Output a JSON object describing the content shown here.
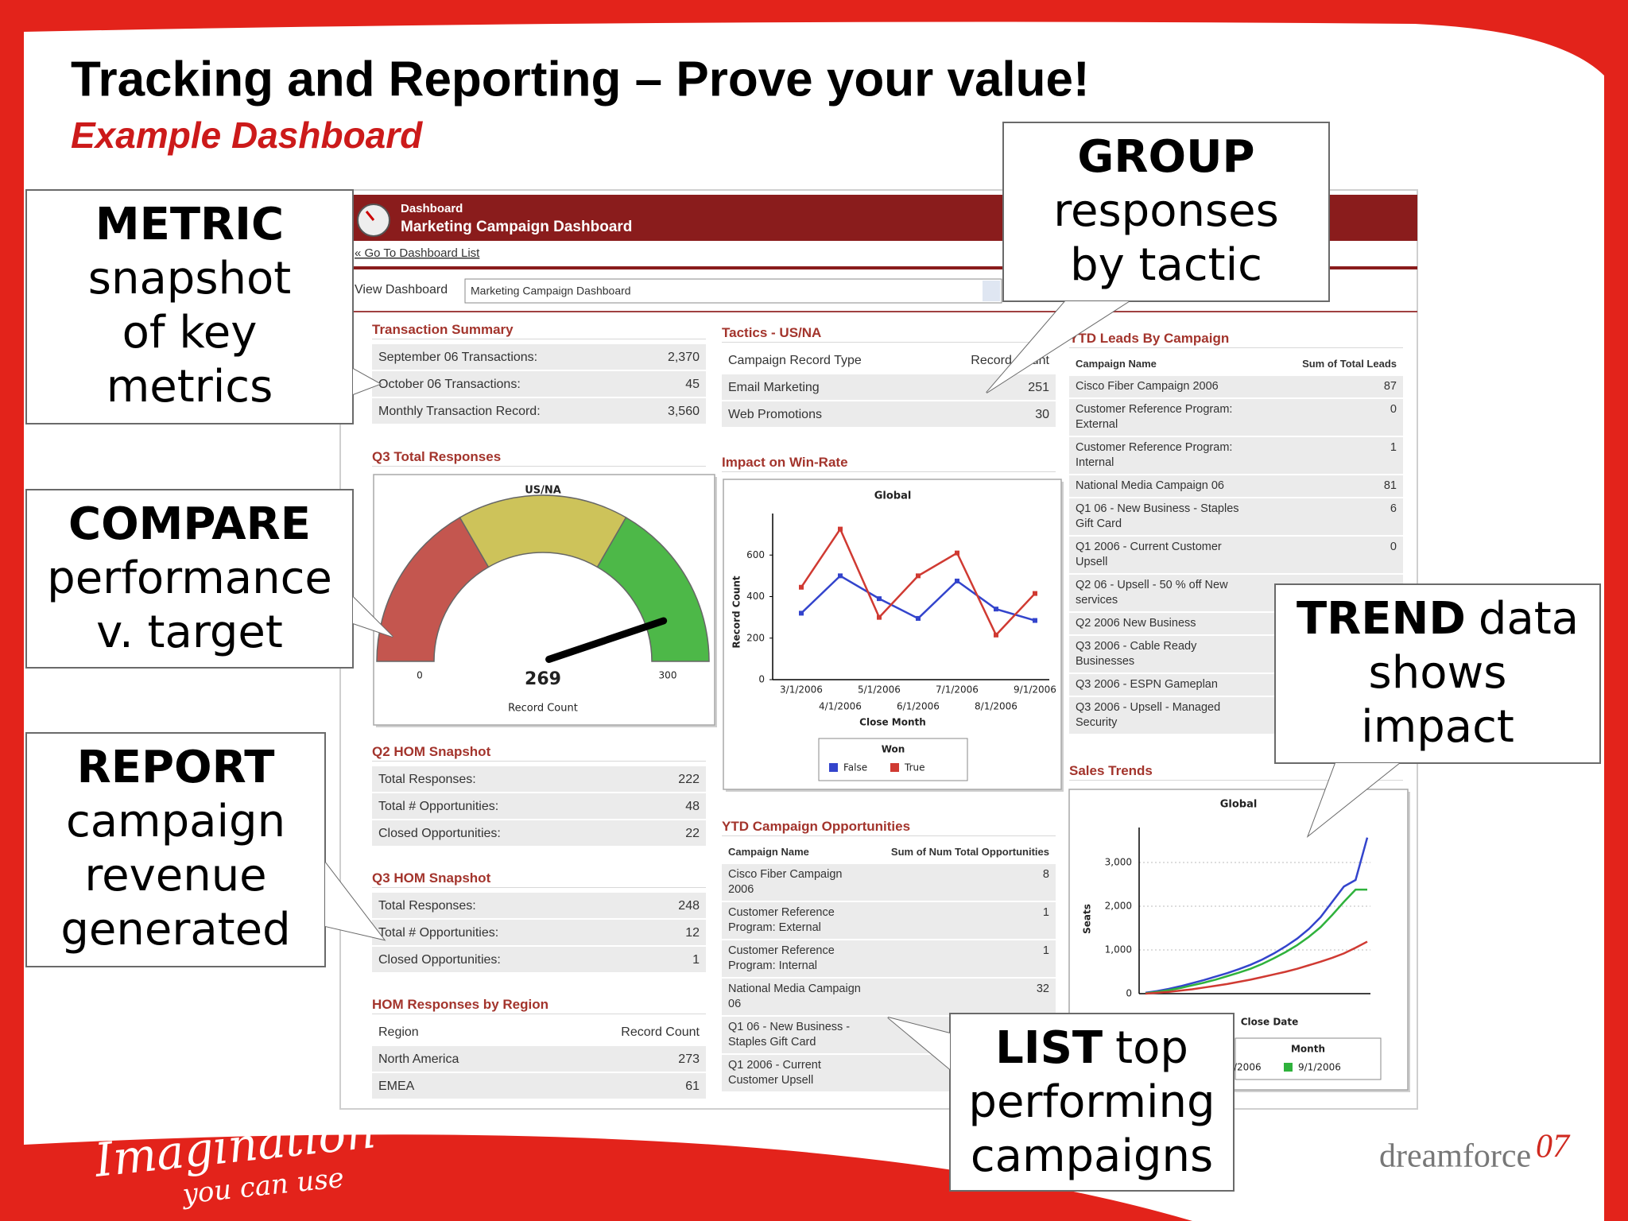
{
  "slide": {
    "title": "Tracking and Reporting – Prove your value!",
    "subtitle": "Example Dashboard"
  },
  "callouts": [
    {
      "heading": "METRIC",
      "lines": [
        "snapshot",
        "of key",
        "metrics"
      ]
    },
    {
      "heading": "COMPARE",
      "lines": [
        "performance",
        "v. target"
      ]
    },
    {
      "heading": "REPORT",
      "lines": [
        "campaign",
        "revenue",
        "generated"
      ]
    },
    {
      "heading": "GROUP",
      "lines": [
        "responses",
        "by tactic"
      ]
    },
    {
      "heading": "TREND",
      "tail": "data",
      "lines": [
        "shows",
        "impact"
      ]
    },
    {
      "heading": "LIST",
      "tail": "top",
      "lines": [
        "performing",
        "campaigns"
      ]
    }
  ],
  "dashboard": {
    "breadcrumb": "Dashboard",
    "name": "Marketing Campaign Dashboard",
    "back_link": "« Go To Dashboard List",
    "view_label": "View Dashboard",
    "view_select": "Marketing Campaign Dashboard",
    "tables": [
      {
        "title": "Transaction Summary",
        "rows": [
          [
            "September 06 Transactions:",
            "2,370"
          ],
          [
            "October 06 Transactions:",
            "45"
          ],
          [
            "Monthly Transaction Record:",
            "3,560"
          ]
        ]
      },
      {
        "title": "Q2 HOM Snapshot",
        "rows": [
          [
            "Total Responses:",
            "222"
          ],
          [
            "Total # Opportunities:",
            "48"
          ],
          [
            "Closed Opportunities:",
            "22"
          ]
        ]
      },
      {
        "title": "Q3 HOM Snapshot",
        "rows": [
          [
            "Total Responses:",
            "248"
          ],
          [
            "Total # Opportunities:",
            "12"
          ],
          [
            "Closed Opportunities:",
            "1"
          ]
        ]
      },
      {
        "title": "HOM Responses by Region",
        "header": [
          "Region",
          "Record Count"
        ],
        "rows": [
          [
            "North America",
            "273"
          ],
          [
            "EMEA",
            "61"
          ]
        ]
      },
      {
        "title": "Tactics - US/NA",
        "header": [
          "Campaign Record Type",
          "Record Count"
        ],
        "rows": [
          [
            "Email Marketing",
            "251"
          ],
          [
            "Web Promotions",
            "30"
          ]
        ]
      },
      {
        "title": "YTD Campaign Opportunities",
        "header": [
          "Campaign Name",
          "Sum of Num Total Opportunities"
        ],
        "rows": [
          [
            "Cisco Fiber Campaign 2006",
            "8"
          ],
          [
            "Customer Reference Program: External",
            "1"
          ],
          [
            "Customer Reference Program: Internal",
            "1"
          ],
          [
            "National Media Campaign 06",
            "32"
          ],
          [
            "Q1 06 - New Business - Staples Gift Card"
          ],
          [
            "Q1 2006 - Current Customer Upsell"
          ]
        ]
      },
      {
        "title": "YTD Leads By Campaign",
        "header": [
          "Campaign Name",
          "Sum of Total Leads"
        ],
        "rows": [
          [
            "Cisco Fiber Campaign 2006",
            "87"
          ],
          [
            "Customer Reference Program: External",
            "0"
          ],
          [
            "Customer Reference Program: Internal",
            "1"
          ],
          [
            "National Media Campaign 06",
            "81"
          ],
          [
            "Q1 06 - New Business - Staples Gift Card",
            "6"
          ],
          [
            "Q1 2006 - Current Customer Upsell",
            "0"
          ],
          [
            "Q2 06 - Upsell - 50 % off New services"
          ],
          [
            "Q2 2006 New Business"
          ],
          [
            "Q3 2006 - Cable Ready Businesses"
          ],
          [
            "Q3 2006 - ESPN Gameplan"
          ],
          [
            "Q3 2006 - Upsell - Managed Security"
          ]
        ]
      }
    ]
  },
  "chart_data": [
    {
      "type": "gauge",
      "panel_title": "Q3 Total Responses",
      "title": "US/NA",
      "value": 269,
      "xlabel": "Record Count",
      "ylim": [
        0,
        300
      ],
      "yticks": [
        0,
        300
      ],
      "needle_color": "#000000",
      "bands": [
        {
          "to": 100,
          "color": "#c4564f"
        },
        {
          "to": 200,
          "color": "#cdc35a"
        },
        {
          "to": 300,
          "color": "#4db848"
        }
      ]
    },
    {
      "type": "line",
      "panel_title": "Impact on Win-Rate",
      "title": "Global",
      "ylabel": "Record Count",
      "xlabel": "Close Month",
      "categories": [
        "3/1/2006",
        "4/1/2006",
        "5/1/2006",
        "6/1/2006",
        "7/1/2006",
        "8/1/2006",
        "9/1/2006"
      ],
      "ylim": [
        0,
        800
      ],
      "yticks": [
        0,
        200,
        400,
        600
      ],
      "grid": false,
      "legend_title": "Won",
      "series": [
        {
          "name": "False",
          "color": "#3344cc",
          "values": [
            320,
            500,
            390,
            295,
            475,
            340,
            285
          ]
        },
        {
          "name": "True",
          "color": "#d03a32",
          "values": [
            445,
            725,
            300,
            500,
            610,
            215,
            415
          ]
        }
      ]
    },
    {
      "type": "line",
      "panel_title": "Sales Trends",
      "title": "Global",
      "ylabel": "Seats",
      "xlabel": "Close Date",
      "ylim": [
        0,
        3800
      ],
      "yticks": [
        0,
        {
          "value": 1000,
          "label": "1,000"
        },
        {
          "value": 2000,
          "label": "2,000"
        },
        {
          "value": 3000,
          "label": "3,000"
        }
      ],
      "grid": true,
      "legend_title": "Month",
      "series": [
        {
          "name": "/2006",
          "color": "#3344cc",
          "values": [
            20,
            60,
            110,
            170,
            240,
            310,
            390,
            470,
            560,
            660,
            780,
            920,
            1080,
            1260,
            1480,
            1750,
            2100,
            2450,
            2600,
            3570
          ]
        },
        {
          "name": "9/1/2006",
          "color": "#2fb23c",
          "values": [
            10,
            40,
            80,
            130,
            190,
            250,
            320,
            400,
            480,
            570,
            680,
            810,
            950,
            1110,
            1300,
            1520,
            1800,
            2100,
            2380,
            2380
          ]
        },
        {
          "color": "#d03a32",
          "values": [
            0,
            20,
            40,
            70,
            100,
            140,
            180,
            220,
            270,
            320,
            380,
            440,
            500,
            570,
            650,
            730,
            820,
            920,
            1050,
            1190
          ]
        }
      ]
    }
  ],
  "footer": {
    "tagline": "Imagination",
    "tagline_2": "you can use",
    "logo": "dreamforce",
    "logo_year": "07"
  }
}
